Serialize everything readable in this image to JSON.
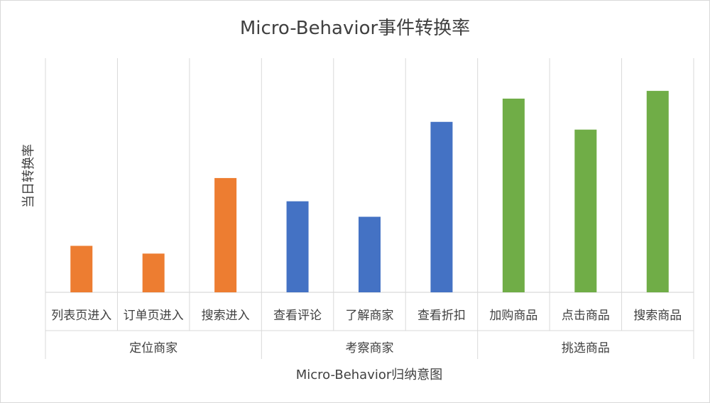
{
  "chart_data": {
    "type": "bar",
    "title": "Micro-Behavior事件转换率",
    "xlabel": "Micro-Behavior归纳意图",
    "ylabel": "当日转换率",
    "ylim": [
      0,
      100
    ],
    "value_axis_labels_shown": false,
    "grid": "vertical category separators",
    "legend": "none",
    "groups": [
      {
        "name": "定位商家",
        "color": "#ED7D31",
        "categories": [
          "列表页进入",
          "订单页进入",
          "搜索进入"
        ],
        "values": [
          24,
          20,
          59
        ]
      },
      {
        "name": "考察商家",
        "color": "#4472C4",
        "categories": [
          "查看评论",
          "了解商家",
          "查看折扣"
        ],
        "values": [
          47,
          39,
          88
        ]
      },
      {
        "name": "挑选商品",
        "color": "#70AD47",
        "categories": [
          "加购商品",
          "点击商品",
          "搜索商品"
        ],
        "values": [
          100,
          84,
          104
        ]
      }
    ]
  }
}
